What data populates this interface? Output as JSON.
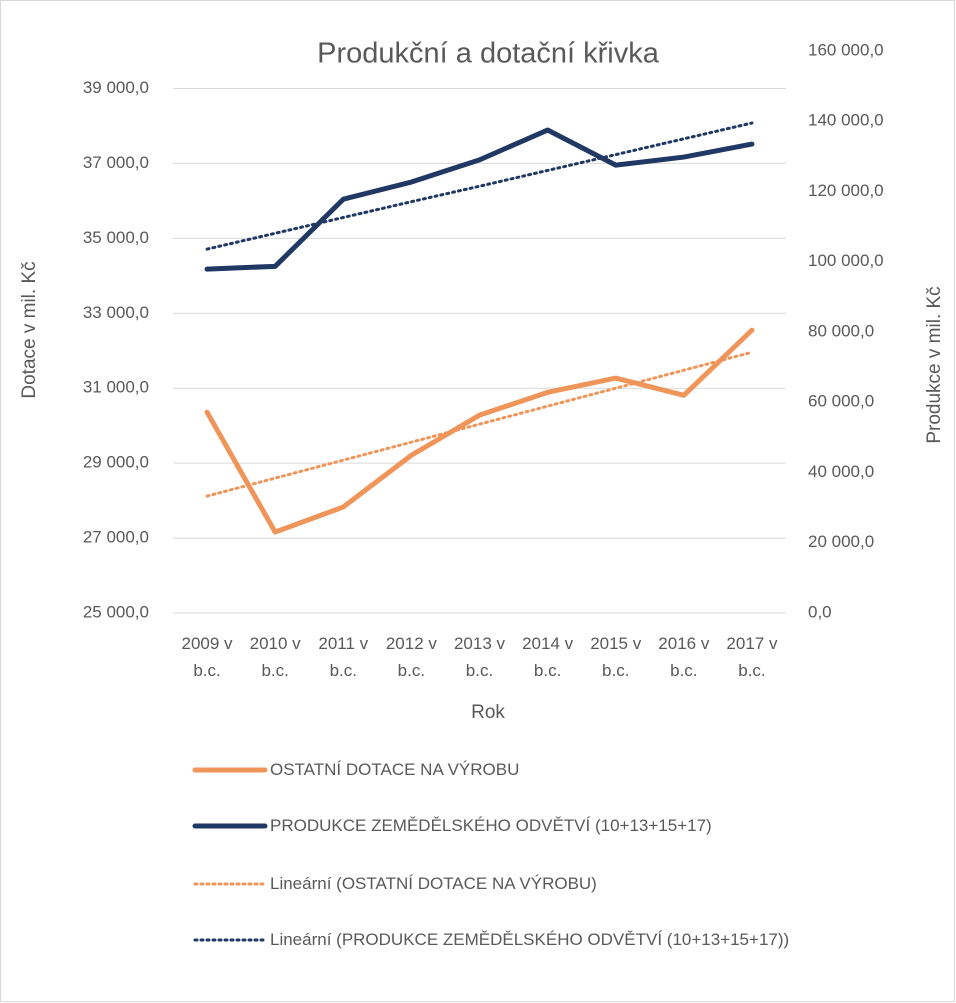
{
  "chart_data": {
    "type": "line",
    "title": "Produkční a dotační křivka",
    "x_label": "Rok",
    "y_label": "Dotace v mil. Kč",
    "y2_label": "Produkce v mil. Kč",
    "categories": [
      "2009 v b.c.",
      "2010 v b.c.",
      "2011 v b.c.",
      "2012 v b.c.",
      "2013 v b.c.",
      "2014 v b.c.",
      "2015 v b.c.",
      "2016 v b.c.",
      "2017 v b.c."
    ],
    "series": [
      {
        "name": "OSTATNÍ DOTACE NA VÝROBU",
        "color": "#f0955a",
        "dash": "solid",
        "axis": "y",
        "values": [
          30360,
          27160,
          27830,
          29210,
          30280,
          30890,
          31270,
          30810,
          32550
        ]
      },
      {
        "name": "PRODUKCE ZEMĚDĚLSKÉHO ODVĚTVÍ (10+13+15+17)",
        "color": "#203864",
        "dash": "solid",
        "axis": "y2",
        "values": [
          97900,
          98700,
          117800,
          122700,
          129000,
          137500,
          127500,
          129800,
          133500
        ]
      },
      {
        "name": "Lineární (OSTATNÍ DOTACE NA VÝROBU)",
        "color": "#f0955a",
        "dash": "dotted",
        "axis": "y",
        "values": [
          28120,
          28600,
          29080,
          29560,
          30040,
          30520,
          31000,
          31480,
          31960
        ]
      },
      {
        "name": "Lineární (PRODUKCE ZEMĚDĚLSKÉHO ODVĚTVÍ (10+13+15+17))",
        "color": "#203864",
        "dash": "dotted",
        "axis": "y2",
        "values": [
          103600,
          108100,
          112600,
          117100,
          121500,
          126000,
          130500,
          135000,
          139500
        ]
      }
    ],
    "ylim": [
      25000,
      40000
    ],
    "yticks": [
      {
        "value": 25000,
        "label": "25 000,0"
      },
      {
        "value": 27000,
        "label": "27 000,0"
      },
      {
        "value": 29000,
        "label": "29 000,0"
      },
      {
        "value": 31000,
        "label": "31 000,0"
      },
      {
        "value": 33000,
        "label": "33 000,0"
      },
      {
        "value": 35000,
        "label": "35 000,0"
      },
      {
        "value": 37000,
        "label": "37 000,0"
      },
      {
        "value": 39000,
        "label": "39 000,0"
      }
    ],
    "y2lim": [
      0,
      160000
    ],
    "y2ticks": [
      {
        "value": 0,
        "label": "0,0"
      },
      {
        "value": 20000,
        "label": "20 000,0"
      },
      {
        "value": 40000,
        "label": "40 000,0"
      },
      {
        "value": 60000,
        "label": "60 000,0"
      },
      {
        "value": 80000,
        "label": "80 000,0"
      },
      {
        "value": 100000,
        "label": "100 000,0"
      },
      {
        "value": 120000,
        "label": "120 000,0"
      },
      {
        "value": 140000,
        "label": "140 000,0"
      },
      {
        "value": 160000,
        "label": "160 000,0"
      }
    ],
    "grid": true,
    "legend": "bottom"
  }
}
